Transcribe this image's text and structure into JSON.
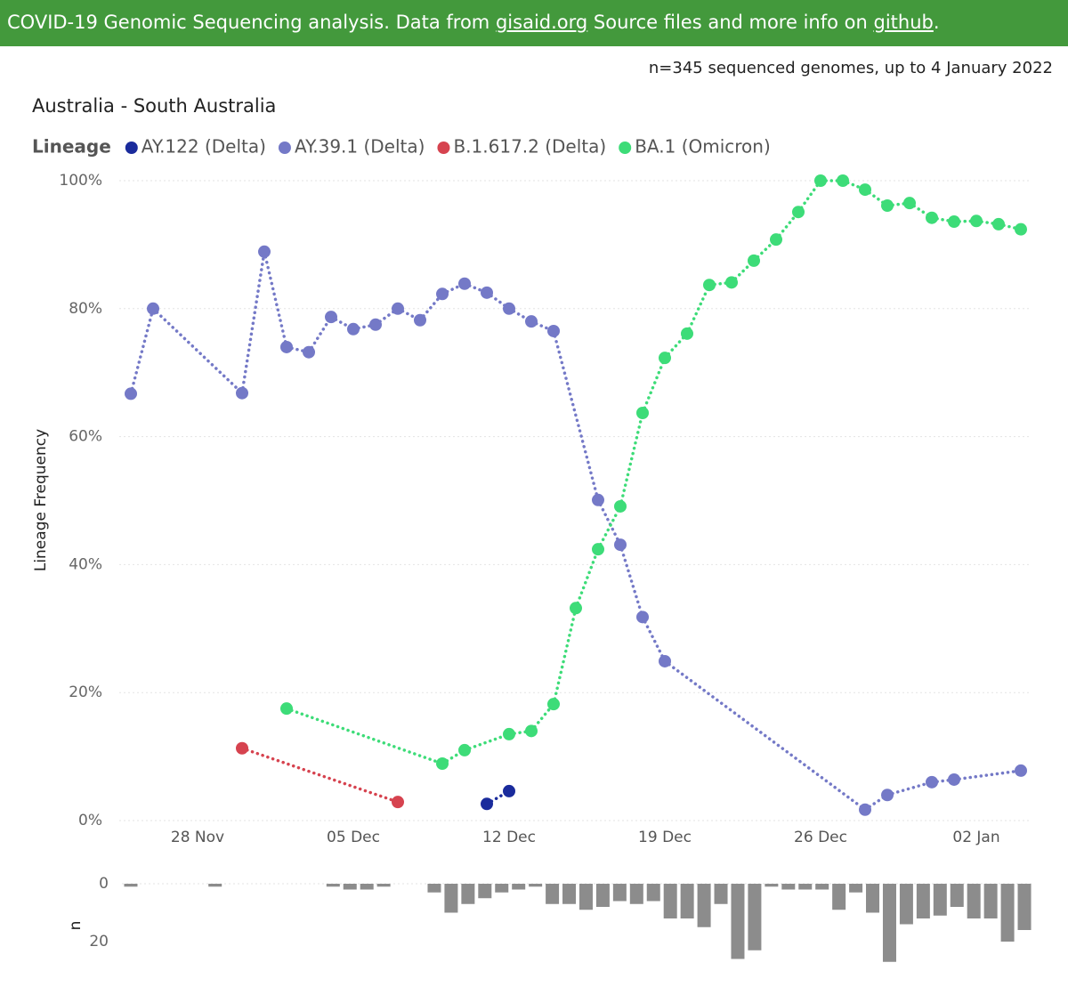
{
  "header": {
    "parts": [
      "COVID-19 Genomic Sequencing analysis. Data from",
      "gisaid.org",
      "Source files and more info on",
      "github",
      "."
    ]
  },
  "subtitle": "n=345 sequenced genomes, up to 4 January 2022",
  "chart_data": [
    {
      "type": "line",
      "title": "Australia - South Australia",
      "legend_title": "Lineage",
      "y_label": "Lineage Frequency",
      "categories": [
        null,
        null,
        null,
        "28 Nov",
        null,
        null,
        null,
        null,
        null,
        null,
        "05 Dec",
        null,
        null,
        null,
        null,
        null,
        null,
        "12 Dec",
        null,
        null,
        null,
        null,
        null,
        null,
        "19 Dec",
        null,
        null,
        null,
        null,
        null,
        null,
        "26 Dec",
        null,
        null,
        null,
        null,
        null,
        null,
        "02 Jan",
        null,
        null
      ],
      "ylim": [
        0,
        100
      ],
      "yticks": [
        {
          "value": 0,
          "label": "0%"
        },
        {
          "value": 20,
          "label": "20%"
        },
        {
          "value": 40,
          "label": "40%"
        },
        {
          "value": 60,
          "label": "60%"
        },
        {
          "value": 80,
          "label": "80%"
        },
        {
          "value": 100,
          "label": "100%"
        }
      ],
      "grid": true,
      "series": [
        {
          "name": "AY.122 (Delta)",
          "color": "#1a2b9c",
          "values": [
            null,
            null,
            null,
            null,
            null,
            null,
            null,
            null,
            null,
            null,
            null,
            null,
            null,
            null,
            null,
            null,
            2.6,
            4.6,
            null,
            null,
            null,
            null,
            null,
            null,
            null,
            null,
            null,
            null,
            null,
            null,
            null,
            null,
            null,
            null,
            null,
            null,
            null,
            null,
            null,
            null,
            null
          ]
        },
        {
          "name": "AY.39.1 (Delta)",
          "color": "#7479c7",
          "values": [
            66.7,
            80.0,
            null,
            null,
            null,
            66.8,
            88.9,
            74.0,
            73.2,
            78.7,
            76.8,
            77.5,
            80.0,
            78.2,
            82.3,
            83.9,
            82.5,
            80.0,
            78.0,
            76.5,
            null,
            50.1,
            43.1,
            31.8,
            24.9,
            null,
            null,
            null,
            null,
            null,
            null,
            null,
            null,
            1.7,
            4.0,
            null,
            6.0,
            6.4,
            null,
            null,
            7.8
          ]
        },
        {
          "name": "B.1.617.2 (Delta)",
          "color": "#d6434f",
          "values": [
            null,
            null,
            null,
            null,
            null,
            11.3,
            null,
            null,
            null,
            null,
            null,
            null,
            2.9,
            null,
            null,
            null,
            null,
            null,
            null,
            null,
            null,
            null,
            null,
            null,
            null,
            null,
            null,
            null,
            null,
            null,
            null,
            null,
            null,
            null,
            null,
            null,
            null,
            null,
            null,
            null,
            null
          ]
        },
        {
          "name": "BA.1 (Omicron)",
          "color": "#3ddc78",
          "values": [
            null,
            null,
            null,
            null,
            null,
            null,
            null,
            17.5,
            null,
            null,
            null,
            null,
            null,
            null,
            8.9,
            11.0,
            null,
            13.5,
            14.0,
            18.2,
            33.2,
            42.4,
            49.1,
            63.7,
            72.3,
            76.1,
            83.7,
            84.1,
            87.5,
            90.8,
            95.1,
            100,
            100,
            98.6,
            96.1,
            96.5,
            94.2,
            93.6,
            93.7,
            93.2,
            92.4
          ]
        }
      ]
    },
    {
      "type": "bar",
      "y_label": "n",
      "color": "#8c8c8c",
      "inverted": true,
      "grid": true,
      "categories": [
        null,
        null,
        null,
        null,
        null,
        null,
        null,
        null,
        null,
        null,
        null,
        null,
        null,
        null,
        null,
        null,
        null,
        null,
        null,
        null,
        null,
        null,
        null,
        null,
        null,
        null,
        null,
        null,
        null,
        null,
        null,
        null,
        null,
        null,
        null,
        null,
        null,
        null,
        null,
        null,
        null,
        null,
        null,
        null,
        null,
        null,
        null,
        null,
        null,
        null,
        null,
        null,
        null,
        null
      ],
      "values": [
        1,
        null,
        null,
        null,
        null,
        1,
        null,
        null,
        null,
        null,
        null,
        null,
        1,
        2,
        2,
        1,
        null,
        null,
        3,
        10,
        7,
        5,
        3,
        2,
        1,
        7,
        7,
        9,
        8,
        6,
        7,
        6,
        12,
        12,
        15,
        7,
        26,
        23,
        1,
        2,
        2,
        2,
        9,
        3,
        10,
        27,
        14,
        12,
        11,
        8,
        12,
        12,
        20,
        16
      ],
      "ylim": [
        0,
        30
      ],
      "yticks": [
        0,
        20
      ]
    }
  ]
}
